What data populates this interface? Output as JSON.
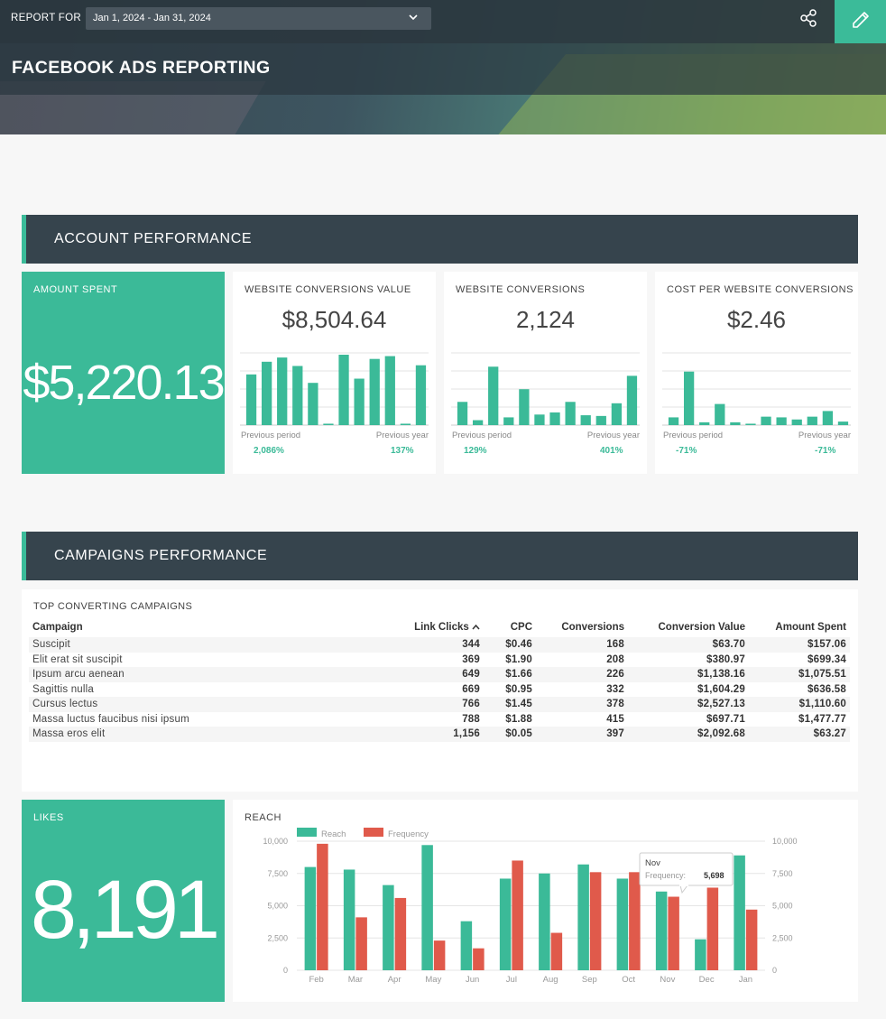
{
  "header": {
    "report_for_label": "REPORT FOR",
    "date_range": "Jan 1, 2024 - Jan 31, 2024",
    "title": "FACEBOOK ADS REPORTING",
    "accent_color": "#3bbb99"
  },
  "sections": {
    "account": "ACCOUNT PERFORMANCE",
    "campaigns": "CAMPAIGNS PERFORMANCE"
  },
  "amount_spent": {
    "label": "AMOUNT SPENT",
    "value": "$5,220.13"
  },
  "kpis": [
    {
      "title": "WEBSITE CONVERSIONS VALUE",
      "value": "$8,504.64",
      "prev_label": "Previous period",
      "year_label": "Previous year",
      "prev_change": "2,086%",
      "year_change": "137%",
      "bars": [
        0.72,
        0.9,
        0.96,
        0.84,
        0.6,
        0.02,
        1.0,
        0.66,
        0.94,
        0.98,
        0.02,
        0.85
      ]
    },
    {
      "title": "WEBSITE CONVERSIONS",
      "value": "2,124",
      "prev_label": "Previous period",
      "year_label": "Previous year",
      "prev_change": "129%",
      "year_change": "401%",
      "bars": [
        0.33,
        0.07,
        0.83,
        0.11,
        0.51,
        0.15,
        0.18,
        0.33,
        0.14,
        0.13,
        0.31,
        0.7
      ]
    },
    {
      "title": "COST PER WEBSITE CONVERSIONS",
      "value": "$2.46",
      "prev_label": "Previous period",
      "year_label": "Previous year",
      "prev_change": "-71%",
      "year_change": "-71%",
      "bars": [
        0.11,
        0.76,
        0.04,
        0.3,
        0.04,
        0.02,
        0.12,
        0.11,
        0.08,
        0.12,
        0.2,
        0.05
      ]
    }
  ],
  "campaigns_table": {
    "title": "TOP CONVERTING CAMPAIGNS",
    "columns": [
      "Campaign",
      "Link Clicks",
      "CPC",
      "Conversions",
      "Conversion Value",
      "Amount Spent"
    ],
    "sort_indicator": "^",
    "rows": [
      [
        "Suscipit",
        "344",
        "$0.46",
        "168",
        "$63.70",
        "$157.06"
      ],
      [
        "Elit erat sit suscipit",
        "369",
        "$1.90",
        "208",
        "$380.97",
        "$699.34"
      ],
      [
        "Ipsum arcu aenean",
        "649",
        "$1.66",
        "226",
        "$1,138.16",
        "$1,075.51"
      ],
      [
        "Sagittis nulla",
        "669",
        "$0.95",
        "332",
        "$1,604.29",
        "$636.58"
      ],
      [
        "Cursus lectus",
        "766",
        "$1.45",
        "378",
        "$2,527.13",
        "$1,110.60"
      ],
      [
        "Massa luctus faucibus nisi ipsum",
        "788",
        "$1.88",
        "415",
        "$697.71",
        "$1,477.77"
      ],
      [
        "Massa eros elit",
        "1,156",
        "$0.05",
        "397",
        "$2,092.68",
        "$63.27"
      ]
    ]
  },
  "likes": {
    "label": "LIKES",
    "value": "8,191"
  },
  "reach_chart_title": "REACH",
  "tooltip": {
    "title": "Nov",
    "label": "Frequency:",
    "value": "5,698"
  },
  "chart_data": {
    "type": "bar",
    "title": "REACH",
    "categories": [
      "Feb",
      "Mar",
      "Apr",
      "May",
      "Jun",
      "Jul",
      "Aug",
      "Sep",
      "Oct",
      "Nov",
      "Dec",
      "Jan"
    ],
    "series": [
      {
        "name": "Reach",
        "color": "#3bba98",
        "values": [
          8000,
          7800,
          6600,
          9700,
          3800,
          7100,
          7500,
          8200,
          7100,
          6100,
          2400,
          8900
        ]
      },
      {
        "name": "Frequency",
        "color": "#e05a4b",
        "values": [
          9800,
          4100,
          5600,
          2300,
          1700,
          8500,
          2900,
          7600,
          7600,
          5698,
          6400,
          4700
        ]
      }
    ],
    "y_ticks": [
      "0",
      "2,500",
      "5,000",
      "7,500",
      "10,000"
    ],
    "ylim": [
      0,
      10000
    ],
    "grid": true,
    "legend": "top-left"
  }
}
